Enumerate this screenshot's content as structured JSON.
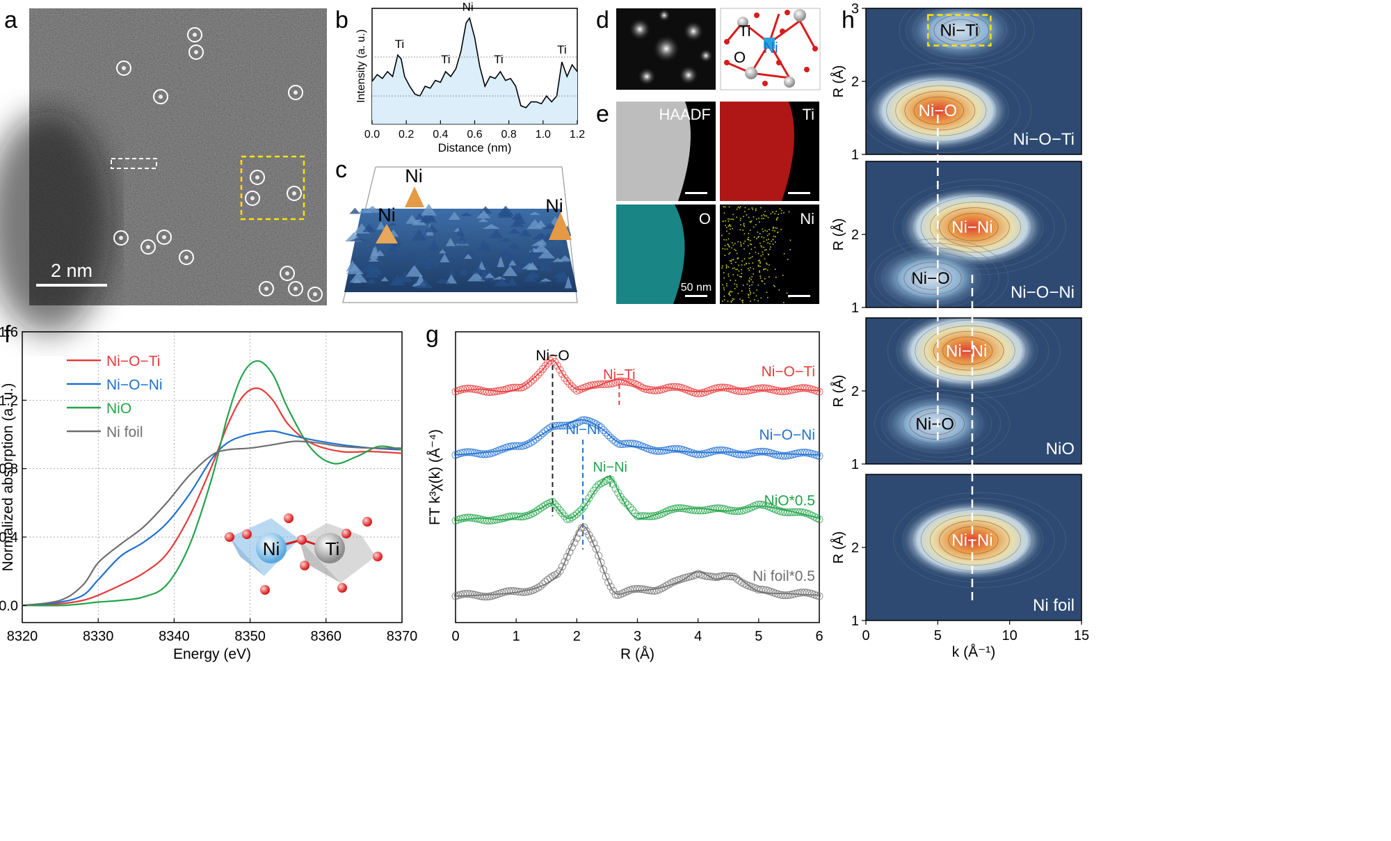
{
  "panel_letters": {
    "a": "a",
    "b": "b",
    "c": "c",
    "d": "d",
    "e": "e",
    "f": "f",
    "g": "g",
    "h": "h"
  },
  "panel_a": {
    "scale_label": "2 nm"
  },
  "panel_c": {
    "labels": [
      "Ni",
      "Ni",
      "Ni"
    ]
  },
  "panel_d": {
    "atom_labels": [
      "Ti",
      "O",
      "Ni"
    ]
  },
  "panel_e": {
    "tiles": [
      "HAADF",
      "Ti",
      "O",
      "Ni"
    ],
    "scale_label": "50 nm"
  },
  "colors": {
    "nioti": "#e8393a",
    "nioni": "#1f6fd1",
    "nio": "#22a34a",
    "foil": "#6e6e6e",
    "dark_bg": "#2e4a72",
    "ti": "#cc1111",
    "o": "#23b5b5",
    "ni_map": "#d6d61a"
  },
  "chart_data": [
    {
      "panel": "b",
      "type": "line",
      "xlabel": "Distance (nm)",
      "ylabel": "Intensity (a. u.)",
      "xlim": [
        0,
        1.2
      ],
      "xticks": [
        "0.0",
        "0.2",
        "0.4",
        "0.6",
        "0.8",
        "1.0",
        "1.2"
      ],
      "series": [
        {
          "x": [
            0,
            0.03,
            0.06,
            0.09,
            0.12,
            0.15,
            0.17,
            0.19,
            0.22,
            0.25,
            0.28,
            0.31,
            0.34,
            0.37,
            0.4,
            0.43,
            0.46,
            0.49,
            0.52,
            0.55,
            0.57,
            0.6,
            0.63,
            0.66,
            0.69,
            0.72,
            0.75,
            0.78,
            0.81,
            0.84,
            0.87,
            0.9,
            0.93,
            0.96,
            0.99,
            1.02,
            1.05,
            1.08,
            1.11,
            1.14,
            1.17,
            1.2
          ],
          "y": [
            0.35,
            0.42,
            0.38,
            0.45,
            0.4,
            0.62,
            0.58,
            0.4,
            0.3,
            0.22,
            0.2,
            0.3,
            0.28,
            0.36,
            0.34,
            0.45,
            0.4,
            0.48,
            0.66,
            0.95,
            1.0,
            0.8,
            0.5,
            0.3,
            0.4,
            0.38,
            0.45,
            0.36,
            0.38,
            0.3,
            0.1,
            0.08,
            0.14,
            0.14,
            0.12,
            0.2,
            0.14,
            0.2,
            0.55,
            0.4,
            0.52,
            0.45
          ]
        }
      ],
      "annotations": [
        "Ti",
        "Ti",
        "Ni",
        "Ti",
        "Ti"
      ],
      "grid": false
    },
    {
      "panel": "f",
      "type": "line",
      "xlabel": "Energy (eV)",
      "ylabel": "Normalized absorption (a. u.)",
      "xlim": [
        8320,
        8370
      ],
      "ylim": [
        -0.1,
        1.6
      ],
      "xticks": [
        "8320",
        "8330",
        "8340",
        "8350",
        "8360",
        "8370"
      ],
      "yticks": [
        "0.0",
        "0.4",
        "0.8",
        "1.2",
        "1.6"
      ],
      "grid": true,
      "legend": "top-left",
      "inset_labels": [
        "Ni",
        "Ti"
      ],
      "series": [
        {
          "name": "Ni−O−Ti",
          "color": "#e8393a",
          "x": [
            8320,
            8325,
            8328,
            8330,
            8333,
            8336,
            8339,
            8342,
            8345,
            8347,
            8349,
            8351,
            8353,
            8355,
            8358,
            8362,
            8366,
            8370
          ],
          "y": [
            0,
            0.01,
            0.03,
            0.06,
            0.12,
            0.19,
            0.3,
            0.52,
            0.82,
            1.05,
            1.22,
            1.27,
            1.2,
            1.06,
            0.95,
            0.9,
            0.9,
            0.89
          ]
        },
        {
          "name": "Ni−O−Ni",
          "color": "#1f6fd1",
          "x": [
            8320,
            8325,
            8328,
            8330,
            8333,
            8336,
            8339,
            8342,
            8345,
            8347,
            8349,
            8351,
            8353,
            8355,
            8358,
            8362,
            8366,
            8370
          ],
          "y": [
            0,
            0.02,
            0.06,
            0.15,
            0.29,
            0.37,
            0.48,
            0.65,
            0.86,
            0.95,
            0.99,
            1.01,
            1.02,
            1.0,
            0.97,
            0.94,
            0.92,
            0.91
          ]
        },
        {
          "name": "NiO",
          "color": "#22a34a",
          "x": [
            8320,
            8325,
            8328,
            8330,
            8333,
            8336,
            8339,
            8342,
            8345,
            8347,
            8349,
            8351,
            8353,
            8355,
            8358,
            8361,
            8364,
            8367,
            8370
          ],
          "y": [
            0,
            0.0,
            0.01,
            0.02,
            0.03,
            0.05,
            0.12,
            0.35,
            0.75,
            1.1,
            1.35,
            1.43,
            1.35,
            1.15,
            0.92,
            0.83,
            0.87,
            0.93,
            0.91
          ]
        },
        {
          "name": "Ni foil",
          "color": "#6e6e6e",
          "x": [
            8320,
            8325,
            8328,
            8330,
            8333,
            8336,
            8339,
            8342,
            8345,
            8347,
            8350,
            8353,
            8356,
            8359,
            8362,
            8366,
            8370
          ],
          "y": [
            0,
            0.03,
            0.12,
            0.25,
            0.36,
            0.46,
            0.6,
            0.76,
            0.88,
            0.91,
            0.92,
            0.94,
            0.96,
            0.95,
            0.93,
            0.92,
            0.92
          ]
        }
      ]
    },
    {
      "panel": "g",
      "type": "line",
      "xlabel": "R (Å)",
      "ylabel": "FT k³χ(k) (Å⁻⁴)",
      "xlim": [
        0,
        6
      ],
      "xticks": [
        "0",
        "1",
        "2",
        "3",
        "4",
        "5",
        "6"
      ],
      "peak_labels": {
        "nio": "Ni−O",
        "niti": "Ni−Ti",
        "nini_blue": "Ni−Ni",
        "nini_green": "Ni−Ni"
      },
      "reference_lines_R": [
        1.6,
        2.1,
        2.7,
        2.55
      ],
      "series": [
        {
          "name": "Ni−O−Ti",
          "color": "#e8393a",
          "offset": 4.2,
          "x": [
            0,
            0.4,
            0.8,
            1.1,
            1.4,
            1.6,
            1.8,
            2.0,
            2.3,
            2.7,
            3.1,
            3.5,
            4.0,
            4.5,
            5.0,
            5.5,
            6.0
          ],
          "y": [
            0.0,
            0.05,
            0.0,
            0.1,
            0.4,
            0.65,
            0.3,
            0.05,
            0.1,
            0.25,
            0.05,
            0.08,
            0.0,
            0.06,
            0.03,
            0.05,
            0.02
          ]
        },
        {
          "name": "Ni−O−Ni",
          "color": "#1f6fd1",
          "offset": 2.9,
          "x": [
            0,
            0.4,
            0.8,
            1.1,
            1.4,
            1.6,
            1.8,
            2.1,
            2.4,
            2.7,
            3.1,
            3.5,
            4.0,
            4.5,
            5.0,
            5.5,
            6.0
          ],
          "y": [
            0.0,
            0.04,
            0.1,
            0.2,
            0.4,
            0.55,
            0.62,
            0.72,
            0.55,
            0.25,
            0.15,
            0.1,
            0.05,
            0.06,
            0.03,
            0.02,
            0.0
          ]
        },
        {
          "name": "NiO*0.5",
          "color": "#22a34a",
          "offset": 1.55,
          "x": [
            0,
            0.4,
            0.8,
            1.1,
            1.4,
            1.6,
            1.85,
            2.1,
            2.35,
            2.55,
            2.75,
            3.0,
            3.5,
            4.0,
            4.5,
            5.0,
            5.5,
            6.0
          ],
          "y": [
            0.0,
            0.05,
            0.02,
            0.1,
            0.25,
            0.35,
            0.05,
            0.25,
            0.7,
            0.9,
            0.45,
            0.05,
            0.2,
            0.25,
            0.2,
            0.3,
            0.2,
            0.05
          ]
        },
        {
          "name": "Ni foil*0.5",
          "color": "#6e6e6e",
          "offset": 0.0,
          "x": [
            0,
            0.4,
            0.8,
            1.1,
            1.4,
            1.7,
            1.9,
            2.1,
            2.3,
            2.5,
            2.65,
            2.9,
            3.3,
            3.7,
            4.0,
            4.3,
            4.6,
            5.0,
            5.5,
            6.0
          ],
          "y": [
            0.0,
            0.02,
            0.05,
            0.1,
            0.2,
            0.45,
            1.0,
            1.45,
            1.0,
            0.35,
            0.05,
            0.1,
            0.15,
            0.3,
            0.5,
            0.35,
            0.42,
            0.1,
            0.05,
            0.02
          ]
        }
      ]
    },
    {
      "panel": "h",
      "type": "heatmap",
      "xlabel": "k (Å⁻¹)",
      "ylabel": "R (Å)",
      "xlim": [
        0,
        15
      ],
      "ylim": [
        1,
        3
      ],
      "xticks": [
        "0",
        "5",
        "10",
        "15"
      ],
      "yticks": [
        "1",
        "2",
        "3"
      ],
      "reference_k": [
        5.0,
        7.4
      ],
      "maps": [
        {
          "name": "Ni−O−Ti",
          "peaks": [
            {
              "label": "Ni−O",
              "k": 5.0,
              "R": 1.6,
              "intensity": 1.0
            },
            {
              "label": "Ni−Ti",
              "k": 6.5,
              "R": 2.7,
              "intensity": 0.35
            }
          ]
        },
        {
          "name": "Ni−O−Ni",
          "peaks": [
            {
              "label": "Ni−Ni",
              "k": 7.4,
              "R": 2.1,
              "intensity": 1.0
            },
            {
              "label": "Ni−O",
              "k": 4.5,
              "R": 1.4,
              "intensity": 0.45
            }
          ]
        },
        {
          "name": "NiO",
          "peaks": [
            {
              "label": "Ni−Ni",
              "k": 7.0,
              "R": 2.55,
              "intensity": 1.0
            },
            {
              "label": "Ni−O",
              "k": 4.8,
              "R": 1.55,
              "intensity": 0.35
            }
          ]
        },
        {
          "name": "Ni foil",
          "peaks": [
            {
              "label": "Ni−Ni",
              "k": 7.4,
              "R": 2.1,
              "intensity": 1.0
            }
          ]
        }
      ]
    }
  ]
}
